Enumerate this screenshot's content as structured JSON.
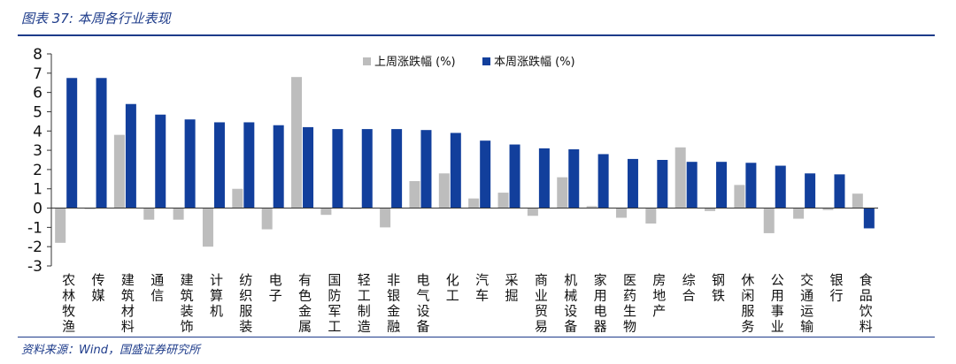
{
  "figure": {
    "title": "图表 37:  本周各行业表现",
    "source": "资料来源：Wind，国盛证券研究所"
  },
  "colors": {
    "last_week": "#bdbdbd",
    "this_week": "#123f9c",
    "frame": "#1d3b8a",
    "axis": "#333333"
  },
  "chart_data": {
    "type": "bar",
    "title": "",
    "xlabel": "",
    "ylabel": "",
    "ylim": [
      -3,
      8
    ],
    "yticks": [
      -3,
      -2,
      -1,
      0,
      1,
      2,
      3,
      4,
      5,
      6,
      7,
      8
    ],
    "grid": false,
    "legend_position": "top-center",
    "categories": [
      "农林牧渔",
      "传媒",
      "建筑材料",
      "通信",
      "建筑装饰",
      "计算机",
      "纺织服装",
      "电子",
      "有色金属",
      "国防军工",
      "轻工制造",
      "非银金融",
      "电气设备",
      "化工",
      "汽车",
      "采掘",
      "商业贸易",
      "机械设备",
      "家用电器",
      "医药生物",
      "房地产",
      "综合",
      "钢铁",
      "休闲服务",
      "公用事业",
      "交通运输",
      "银行",
      "食品饮料"
    ],
    "series": [
      {
        "name": "上周涨跌幅 (%)",
        "values": [
          -1.8,
          -0.05,
          3.8,
          -0.6,
          -0.6,
          -2.0,
          1.0,
          -1.1,
          6.8,
          -0.35,
          -0.05,
          -1.0,
          1.4,
          1.8,
          0.5,
          0.8,
          -0.4,
          1.6,
          0.1,
          -0.5,
          -0.8,
          3.15,
          -0.15,
          1.2,
          -1.3,
          -0.55,
          -0.1,
          0.75
        ]
      },
      {
        "name": "本周涨跌幅 (%)",
        "values": [
          6.75,
          6.75,
          5.4,
          4.85,
          4.6,
          4.45,
          4.45,
          4.3,
          4.2,
          4.1,
          4.1,
          4.1,
          4.05,
          3.9,
          3.5,
          3.3,
          3.1,
          3.05,
          2.8,
          2.55,
          2.5,
          2.4,
          2.4,
          2.35,
          2.2,
          1.8,
          1.75,
          -1.05
        ]
      }
    ]
  }
}
